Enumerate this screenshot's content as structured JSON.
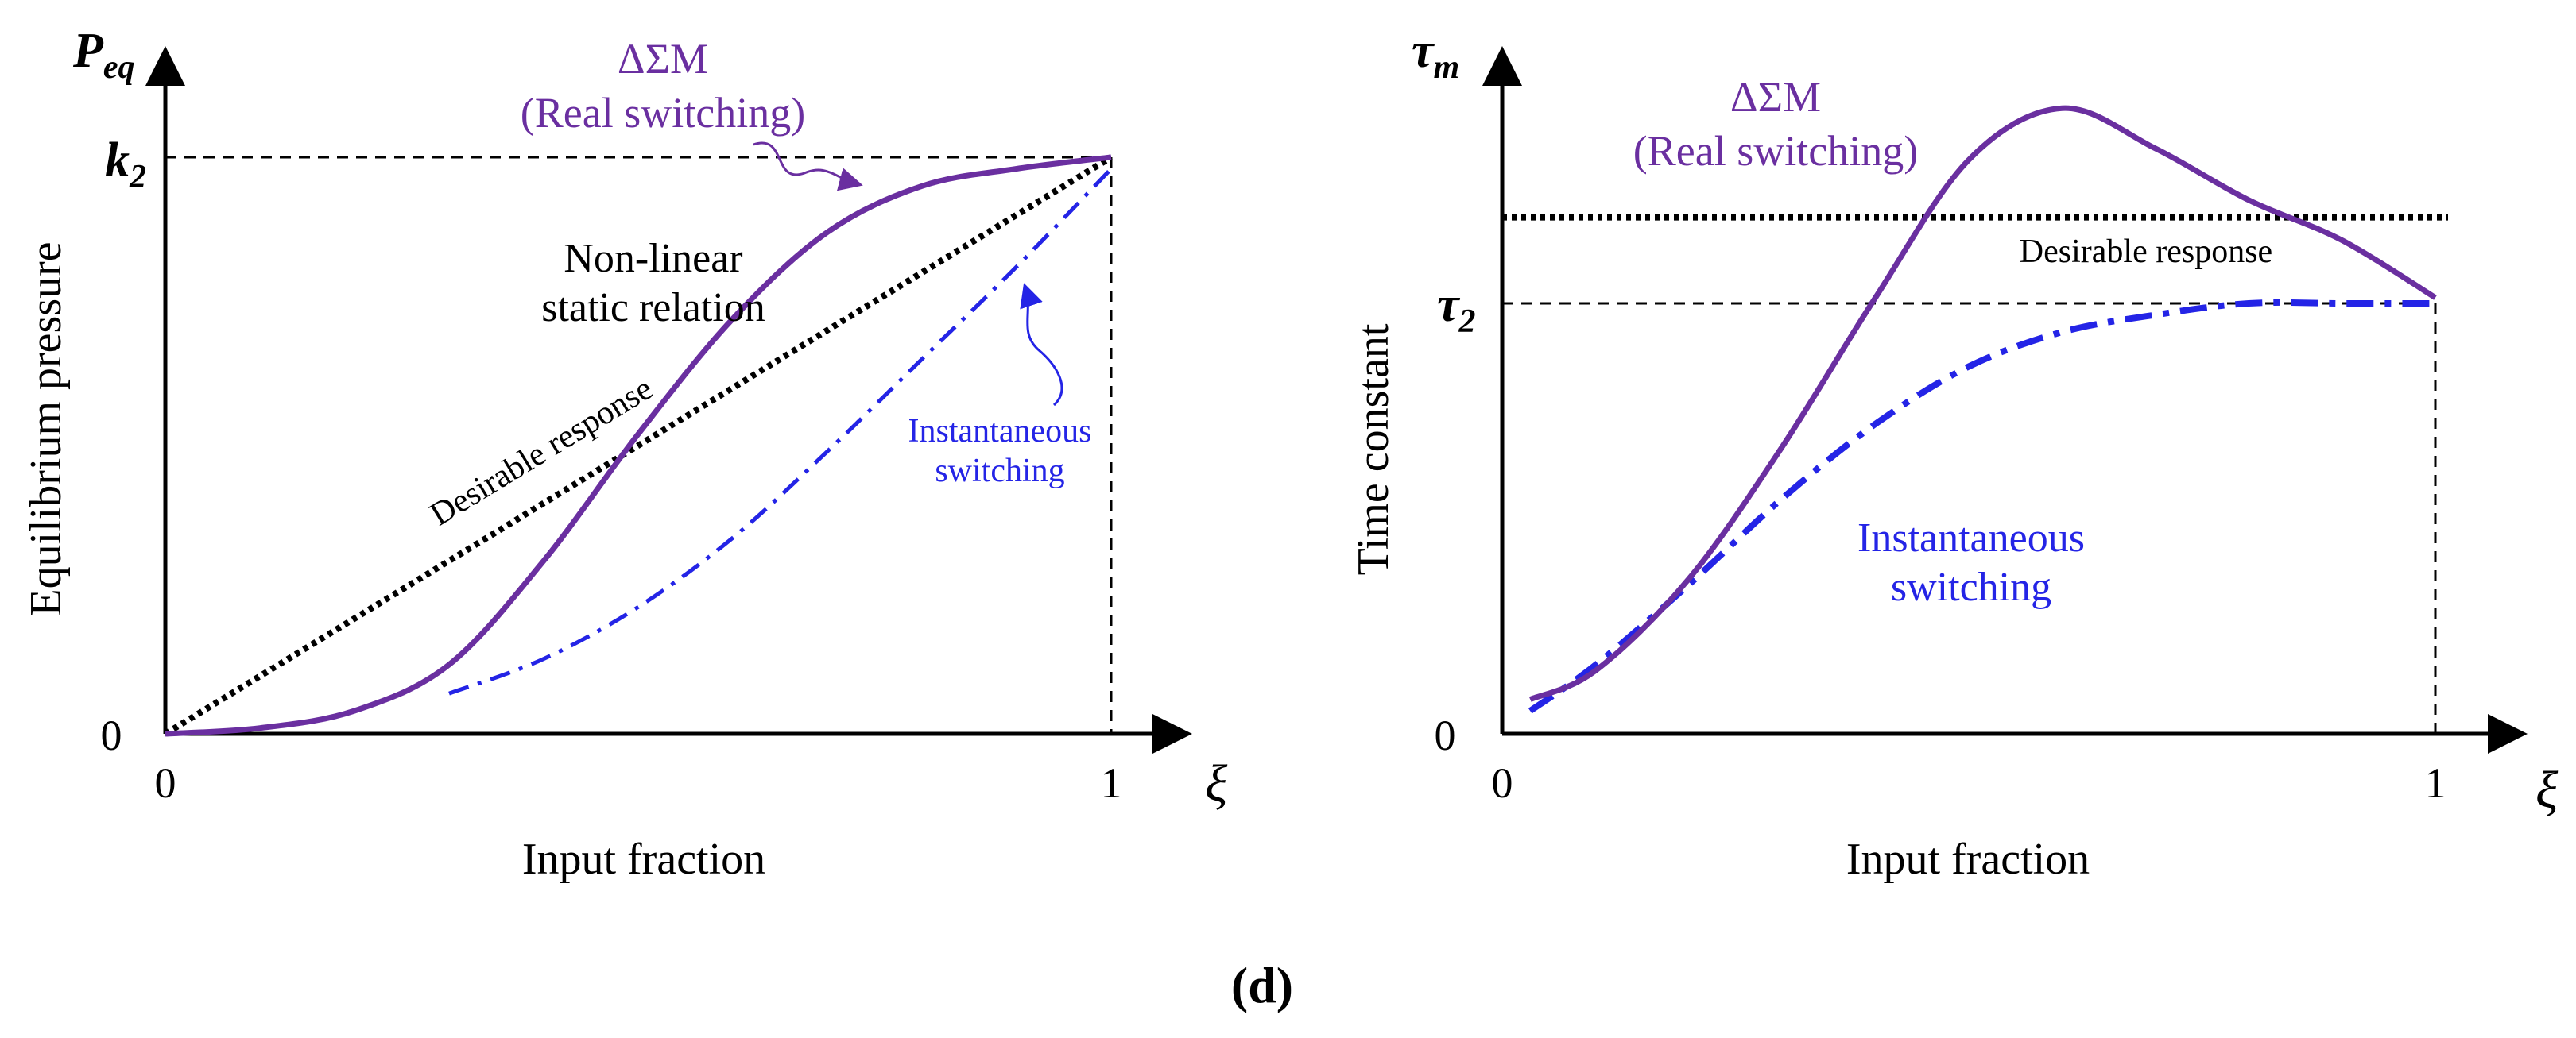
{
  "figure_label": "(d)",
  "colors": {
    "real": "#6a2fa0",
    "instantaneous": "#2424e6",
    "desirable": "#000000"
  },
  "chart_data": [
    {
      "type": "line",
      "xlabel": "Input fraction",
      "ylabel": "Equilibrium pressure",
      "x_axis_symbol": "ξ",
      "y_axis_symbol_base": "P",
      "y_axis_symbol_sub": "eq",
      "xlim": [
        0,
        1
      ],
      "ylim": [
        0,
        1
      ],
      "x_ticks": [
        {
          "value": 0,
          "label": "0"
        },
        {
          "value": 1,
          "label": "1"
        }
      ],
      "y_ticks": [
        {
          "value": 0,
          "label": "0"
        }
      ],
      "y_marker": {
        "value": 1,
        "label_base": "k",
        "label_sub": "2"
      },
      "series": [
        {
          "name": "ΔΣM (Real switching)",
          "style": "solid",
          "x": [
            0,
            0.1,
            0.2,
            0.3,
            0.4,
            0.5,
            0.6,
            0.7,
            0.8,
            0.9,
            1.0
          ],
          "y": [
            0,
            0.01,
            0.04,
            0.12,
            0.3,
            0.52,
            0.72,
            0.87,
            0.95,
            0.98,
            1.0
          ]
        },
        {
          "name": "Instantaneous switching",
          "style": "dashdot",
          "x": [
            0.3,
            0.4,
            0.5,
            0.6,
            0.7,
            0.8,
            0.9,
            1.0
          ],
          "y": [
            0.07,
            0.13,
            0.22,
            0.34,
            0.49,
            0.65,
            0.81,
            0.98
          ]
        },
        {
          "name": "Desirable response",
          "style": "dotted",
          "x": [
            0,
            1
          ],
          "y": [
            0,
            1
          ]
        }
      ],
      "annotations": {
        "real_line1": "ΔΣM",
        "real_line2": "(Real switching)",
        "nonlinear_line1": "Non-linear",
        "nonlinear_line2": "static relation",
        "desirable": "Desirable response",
        "inst_line1": "Instantaneous",
        "inst_line2": "switching"
      }
    },
    {
      "type": "line",
      "xlabel": "Input fraction",
      "ylabel": "Time constant",
      "x_axis_symbol": "ξ",
      "y_axis_symbol_base": "τ",
      "y_axis_symbol_sub": "m",
      "xlim": [
        0,
        1
      ],
      "ylim": [
        0,
        1.15
      ],
      "x_ticks": [
        {
          "value": 0,
          "label": "0"
        },
        {
          "value": 1,
          "label": "1"
        }
      ],
      "y_ticks": [
        {
          "value": 0,
          "label": "0"
        }
      ],
      "y_marker": {
        "value": 0.75,
        "label_base": "τ",
        "label_sub": "2"
      },
      "desirable_level": 0.9,
      "series": [
        {
          "name": "ΔΣM (Real switching)",
          "style": "solid",
          "x": [
            0.03,
            0.1,
            0.2,
            0.3,
            0.4,
            0.5,
            0.6,
            0.7,
            0.8,
            0.9,
            1.0
          ],
          "y": [
            0.06,
            0.11,
            0.27,
            0.5,
            0.76,
            1.0,
            1.09,
            1.02,
            0.93,
            0.86,
            0.76
          ]
        },
        {
          "name": "Instantaneous switching",
          "style": "dashdot",
          "x": [
            0.03,
            0.1,
            0.2,
            0.3,
            0.4,
            0.5,
            0.6,
            0.7,
            0.8,
            0.9,
            1.0
          ],
          "y": [
            0.04,
            0.12,
            0.26,
            0.41,
            0.54,
            0.64,
            0.7,
            0.73,
            0.75,
            0.75,
            0.75
          ]
        }
      ],
      "annotations": {
        "real_line1": "ΔΣM",
        "real_line2": "(Real switching)",
        "desirable": "Desirable response",
        "inst_line1": "Instantaneous",
        "inst_line2": "switching"
      }
    }
  ]
}
